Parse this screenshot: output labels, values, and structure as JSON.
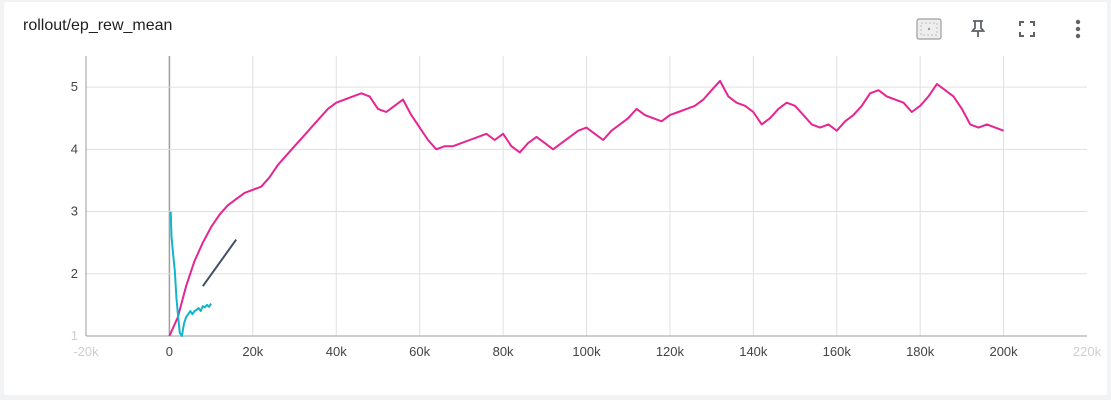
{
  "card": {
    "title": "rollout/ep_rew_mean"
  },
  "toolbar": {
    "buttons": [
      {
        "name": "fit-domain-icon",
        "label": "Fit domain to data"
      },
      {
        "name": "pin-icon",
        "label": "Pin card"
      },
      {
        "name": "fullscreen-icon",
        "label": "Toggle full size"
      },
      {
        "name": "more-vert-icon",
        "label": "More actions"
      }
    ]
  },
  "chart_data": {
    "type": "line",
    "title": "rollout/ep_rew_mean",
    "xlabel": "",
    "ylabel": "",
    "xlim": [
      -20000,
      220000
    ],
    "ylim": [
      1,
      5.5
    ],
    "x_ticks": [
      {
        "value": -20000,
        "label": "-20k",
        "faded": true
      },
      {
        "value": 0,
        "label": "0"
      },
      {
        "value": 20000,
        "label": "20k"
      },
      {
        "value": 40000,
        "label": "40k"
      },
      {
        "value": 60000,
        "label": "60k"
      },
      {
        "value": 80000,
        "label": "80k"
      },
      {
        "value": 100000,
        "label": "100k"
      },
      {
        "value": 120000,
        "label": "120k"
      },
      {
        "value": 140000,
        "label": "140k"
      },
      {
        "value": 160000,
        "label": "160k"
      },
      {
        "value": 180000,
        "label": "180k"
      },
      {
        "value": 200000,
        "label": "200k"
      },
      {
        "value": 220000,
        "label": "220k",
        "faded": true
      }
    ],
    "y_ticks": [
      {
        "value": 1,
        "label": "1",
        "faded": true
      },
      {
        "value": 2,
        "label": "2"
      },
      {
        "value": 3,
        "label": "3"
      },
      {
        "value": 4,
        "label": "4"
      },
      {
        "value": 5,
        "label": "5"
      }
    ],
    "grid": true,
    "series": [
      {
        "color": "#e52592",
        "x": [
          0,
          2000,
          4000,
          6000,
          8000,
          10000,
          12000,
          14000,
          16000,
          18000,
          20000,
          22000,
          24000,
          26000,
          28000,
          30000,
          32000,
          34000,
          36000,
          38000,
          40000,
          42000,
          44000,
          46000,
          48000,
          50000,
          52000,
          54000,
          56000,
          58000,
          60000,
          62000,
          64000,
          66000,
          68000,
          70000,
          72000,
          74000,
          76000,
          78000,
          80000,
          82000,
          84000,
          86000,
          88000,
          90000,
          92000,
          94000,
          96000,
          98000,
          100000,
          102000,
          104000,
          106000,
          108000,
          110000,
          112000,
          114000,
          116000,
          118000,
          120000,
          122000,
          124000,
          126000,
          128000,
          130000,
          132000,
          134000,
          136000,
          138000,
          140000,
          142000,
          144000,
          146000,
          148000,
          150000,
          152000,
          154000,
          156000,
          158000,
          160000,
          162000,
          164000,
          166000,
          168000,
          170000,
          172000,
          174000,
          176000,
          178000,
          180000,
          182000,
          184000,
          186000,
          188000,
          190000,
          192000,
          194000,
          196000,
          198000,
          200000
        ],
        "y": [
          1.0,
          1.3,
          1.8,
          2.2,
          2.5,
          2.75,
          2.95,
          3.1,
          3.2,
          3.3,
          3.35,
          3.4,
          3.55,
          3.75,
          3.9,
          4.05,
          4.2,
          4.35,
          4.5,
          4.65,
          4.75,
          4.8,
          4.85,
          4.9,
          4.85,
          4.65,
          4.6,
          4.7,
          4.8,
          4.55,
          4.35,
          4.15,
          4.0,
          4.05,
          4.05,
          4.1,
          4.15,
          4.2,
          4.25,
          4.15,
          4.25,
          4.05,
          3.95,
          4.1,
          4.2,
          4.1,
          4.0,
          4.1,
          4.2,
          4.3,
          4.35,
          4.25,
          4.15,
          4.3,
          4.4,
          4.5,
          4.65,
          4.55,
          4.5,
          4.45,
          4.55,
          4.6,
          4.65,
          4.7,
          4.8,
          4.95,
          5.1,
          4.85,
          4.75,
          4.7,
          4.6,
          4.4,
          4.5,
          4.65,
          4.75,
          4.7,
          4.55,
          4.4,
          4.35,
          4.4,
          4.3,
          4.45,
          4.55,
          4.7,
          4.9,
          4.95,
          4.85,
          4.8,
          4.75,
          4.6,
          4.7,
          4.85,
          5.05,
          4.95,
          4.85,
          4.65,
          4.4,
          4.35,
          4.4,
          4.35,
          4.3
        ]
      },
      {
        "color": "#12b5cb",
        "x": [
          300,
          500,
          900,
          1300,
          1700,
          2100,
          2500,
          3000,
          3500,
          4000,
          4500,
          5000,
          5500,
          6000,
          6500,
          7000,
          7500,
          8000,
          8500,
          9000,
          9500,
          10000
        ],
        "y": [
          3.0,
          2.6,
          2.3,
          2.05,
          1.6,
          1.3,
          1.05,
          1.0,
          1.2,
          1.3,
          1.35,
          1.4,
          1.35,
          1.4,
          1.42,
          1.45,
          1.4,
          1.48,
          1.46,
          1.5,
          1.47,
          1.52
        ]
      },
      {
        "color": "#425066",
        "x": [
          8000,
          16000
        ],
        "y": [
          1.8,
          2.55
        ]
      }
    ]
  }
}
